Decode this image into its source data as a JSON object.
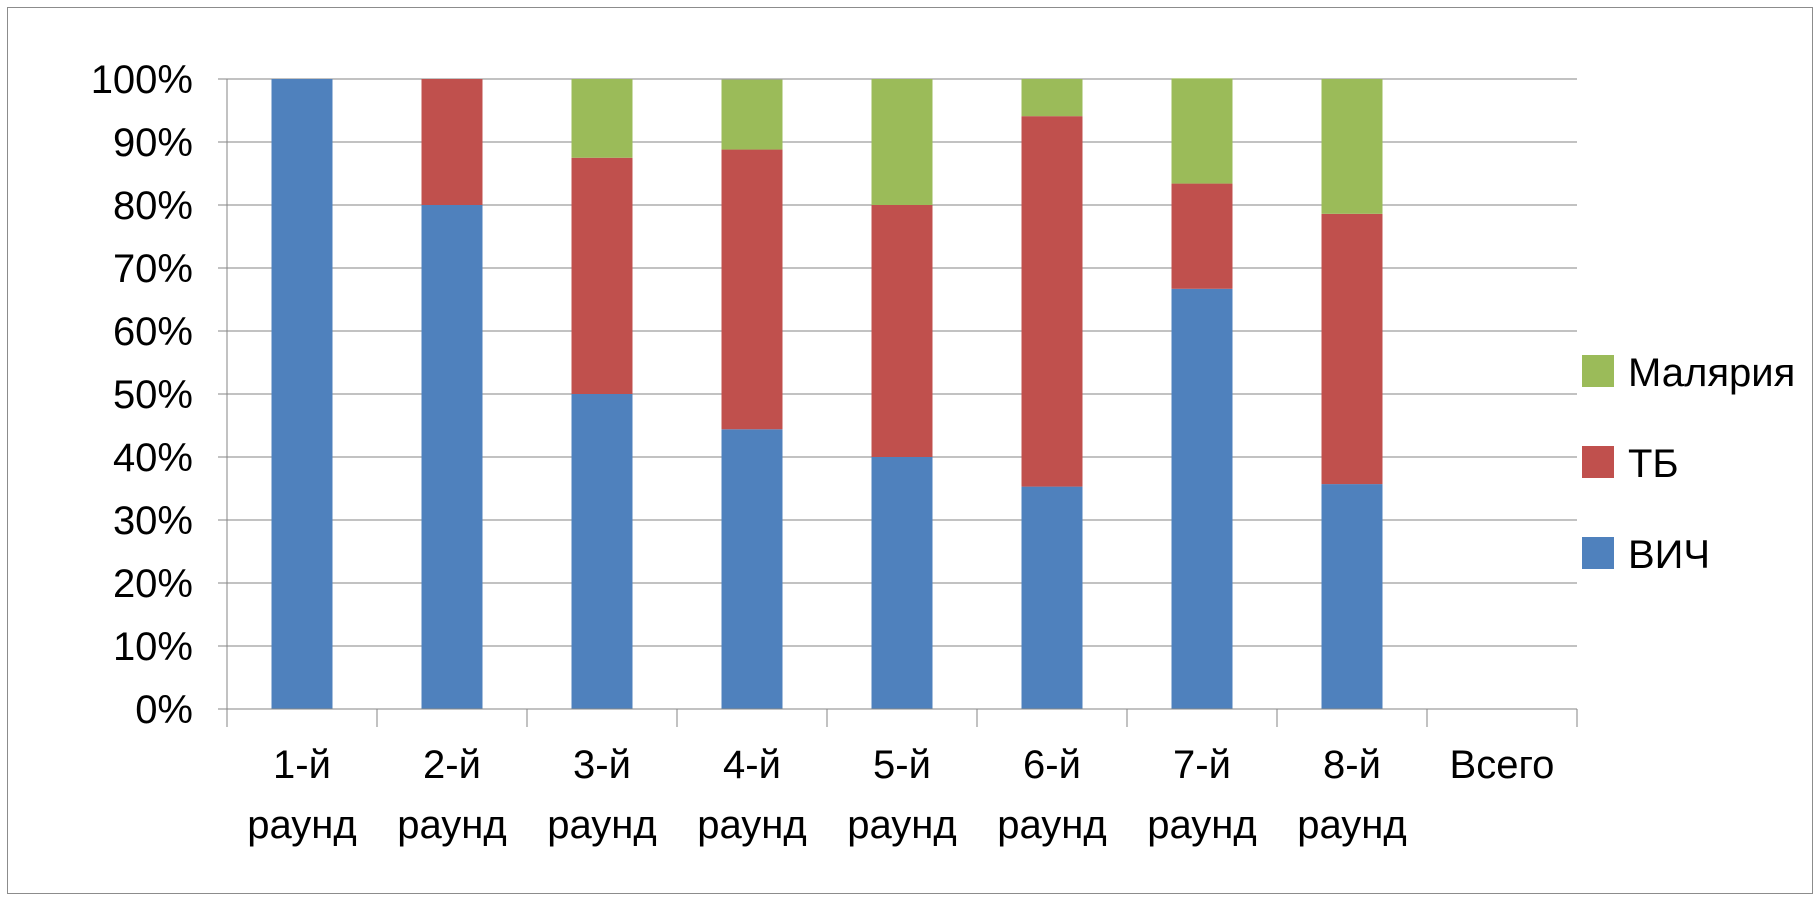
{
  "chart_data": {
    "type": "bar",
    "stacked": true,
    "percent": true,
    "title": "",
    "xlabel": "",
    "ylabel": "",
    "ylim": [
      0,
      100
    ],
    "yticks": [
      0,
      10,
      20,
      30,
      40,
      50,
      60,
      70,
      80,
      90,
      100
    ],
    "ytick_labels": [
      "0%",
      "10%",
      "20%",
      "30%",
      "40%",
      "50%",
      "60%",
      "70%",
      "80%",
      "90%",
      "100%"
    ],
    "grid": true,
    "legend_position": "right",
    "categories": [
      [
        "1-й",
        "раунд"
      ],
      [
        "2-й",
        "раунд"
      ],
      [
        "3-й",
        "раунд"
      ],
      [
        "4-й",
        "раунд"
      ],
      [
        "5-й",
        "раунд"
      ],
      [
        "6-й",
        "раунд"
      ],
      [
        "7-й",
        "раунд"
      ],
      [
        "8-й",
        "раунд"
      ],
      [
        "Всего"
      ]
    ],
    "series": [
      {
        "name": "ВИЧ",
        "color": "#4F81BD",
        "values": [
          100,
          80,
          50,
          44.4,
          40,
          35.3,
          66.7,
          35.7,
          null
        ]
      },
      {
        "name": "ТБ",
        "color": "#C0504D",
        "values": [
          0,
          20,
          37.5,
          44.4,
          40,
          58.8,
          16.7,
          42.9,
          null
        ]
      },
      {
        "name": "Малярия",
        "color": "#9BBB59",
        "values": [
          0,
          0,
          12.5,
          11.1,
          20,
          5.9,
          16.7,
          21.4,
          null
        ]
      }
    ]
  }
}
